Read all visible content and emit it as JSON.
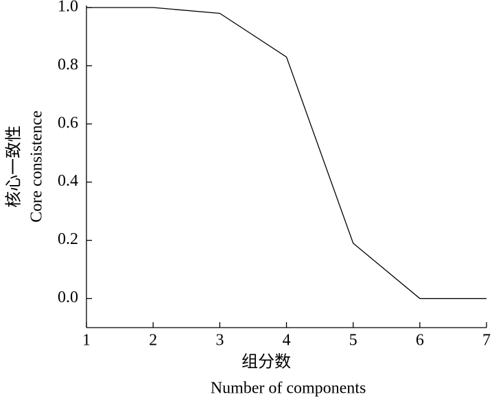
{
  "chart_data": {
    "type": "line",
    "y_label_zh": "核心一致性",
    "y_label": "Core consistence",
    "x_label_zh": "组分数",
    "x_label": "Number of components",
    "x": [
      1,
      2,
      3,
      4,
      5,
      6,
      7
    ],
    "series": [
      {
        "name": "Core consistence",
        "color": "#000000",
        "values": [
          1.0,
          1.0,
          0.98,
          0.83,
          0.19,
          0.0,
          0.0
        ]
      }
    ],
    "xlim": [
      1,
      7
    ],
    "xticks": [
      1,
      2,
      3,
      4,
      5,
      6,
      7
    ],
    "ylim": [
      -0.1,
      1.0
    ],
    "yticks": [
      {
        "value": 0,
        "label": "0.0"
      },
      {
        "value": 0.2,
        "label": "0.2"
      },
      {
        "value": 0.4,
        "label": "0.4"
      },
      {
        "value": 0.6,
        "label": "0.6"
      },
      {
        "value": 0.8,
        "label": "0.8"
      },
      {
        "value": 1.0,
        "label": "1.0"
      }
    ],
    "grid": false
  }
}
